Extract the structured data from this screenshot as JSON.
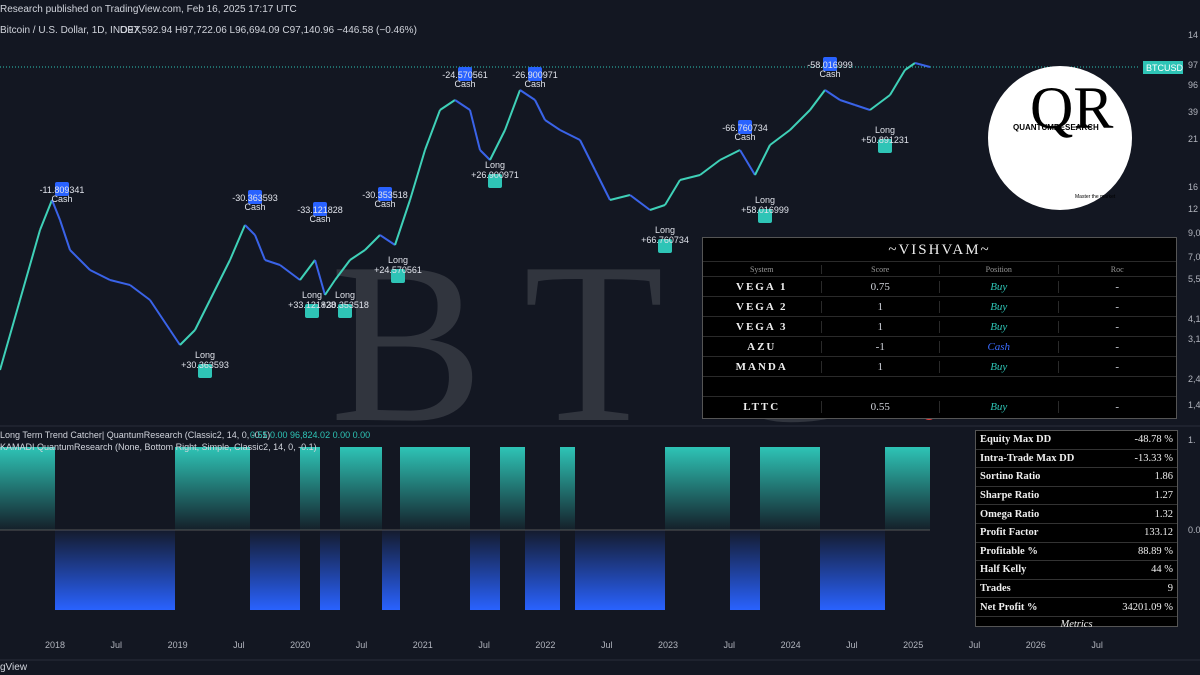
{
  "header": {
    "publisher": "Research published on TradingView.com, Feb 16, 2025 17:17 UTC",
    "symbol": "Bitcoin / U.S. Dollar, 1D, INDEX",
    "ohlc": "O97,592.94 H97,722.06 L96,694.09 C97,140.96 −446.58 (−0.46%)"
  },
  "watermark": "BTC",
  "price_tag": "BTCUSD",
  "logo": {
    "name": "QUANTUMRESEARCH",
    "tagline": "Master the market"
  },
  "trade_labels": [
    {
      "kind": "Cash",
      "text": "-11.809341"
    },
    {
      "kind": "Long",
      "text": "+30.363593"
    },
    {
      "kind": "Cash",
      "text": "-30.363593"
    },
    {
      "kind": "Long",
      "text": "+33.121828"
    },
    {
      "kind": "Cash",
      "text": "-33.121828"
    },
    {
      "kind": "Long",
      "text": "+30.353518"
    },
    {
      "kind": "Cash",
      "text": "-30.353518"
    },
    {
      "kind": "Long",
      "text": "+24.570561"
    },
    {
      "kind": "Cash",
      "text": "-24.570561"
    },
    {
      "kind": "Long",
      "text": "+26.900971"
    },
    {
      "kind": "Cash",
      "text": "-26.900971"
    },
    {
      "kind": "Long",
      "text": "+66.760734"
    },
    {
      "kind": "Cash",
      "text": "-66.760734"
    },
    {
      "kind": "Long",
      "text": "+58.016999"
    },
    {
      "kind": "Cash",
      "text": "-58.016999"
    },
    {
      "kind": "Long",
      "text": "+50.891231"
    }
  ],
  "vishvam": {
    "title": "~VISHVAM~",
    "columns": [
      "System",
      "Score",
      "Position",
      "Roc"
    ],
    "rows": [
      [
        "VEGA 1",
        "0.75",
        "Buy",
        "-"
      ],
      [
        "VEGA 2",
        "1",
        "Buy",
        "-"
      ],
      [
        "VEGA 3",
        "1",
        "Buy",
        "-"
      ],
      [
        "AZU",
        "-1",
        "Cash",
        "-"
      ],
      [
        "MANDA",
        "1",
        "Buy",
        "-"
      ],
      [
        "LTTC",
        "0.55",
        "Buy",
        "-"
      ]
    ]
  },
  "metrics": {
    "rows": [
      [
        "Equity Max DD",
        "-48.78 %"
      ],
      [
        "Intra-Trade Max DD",
        "-13.33 %"
      ],
      [
        "Sortino Ratio",
        "1.86"
      ],
      [
        "Sharpe Ratio",
        "1.27"
      ],
      [
        "Omega Ratio",
        "1.32"
      ],
      [
        "Profit Factor",
        "133.12"
      ],
      [
        "Profitable %",
        "88.89 %"
      ],
      [
        "Half Kelly",
        "44 %"
      ],
      [
        "Trades",
        "9"
      ],
      [
        "Net Profit %",
        "34201.09 %"
      ]
    ],
    "footer": "Metrics"
  },
  "indicators": [
    {
      "name": "Long Term Trend Catcher| QuantumResearch (Classic2, 14, 0, -0.1)",
      "values": "0.55  0.00  96,824.02  0.00  0.00"
    },
    {
      "name": "KAMADI QuantumResearch (None, Bottom Right, Simple, Classic2, 14, 0, -0.1)",
      "values": ""
    }
  ],
  "x_axis": [
    "2018",
    "Jul",
    "2019",
    "Jul",
    "2020",
    "Jul",
    "2021",
    "Jul",
    "2022",
    "Jul",
    "2023",
    "Jul",
    "2024",
    "Jul",
    "2025",
    "Jul",
    "2026",
    "Jul"
  ],
  "right_axis": [
    "14",
    "97",
    "96",
    "39",
    "21",
    "16",
    "12",
    "9,0",
    "7,0",
    "5,5",
    "4,1",
    "3,1",
    "2,4",
    "1,4"
  ],
  "indicator_axis": [
    "1.",
    "0.0"
  ],
  "footer": "gView"
}
